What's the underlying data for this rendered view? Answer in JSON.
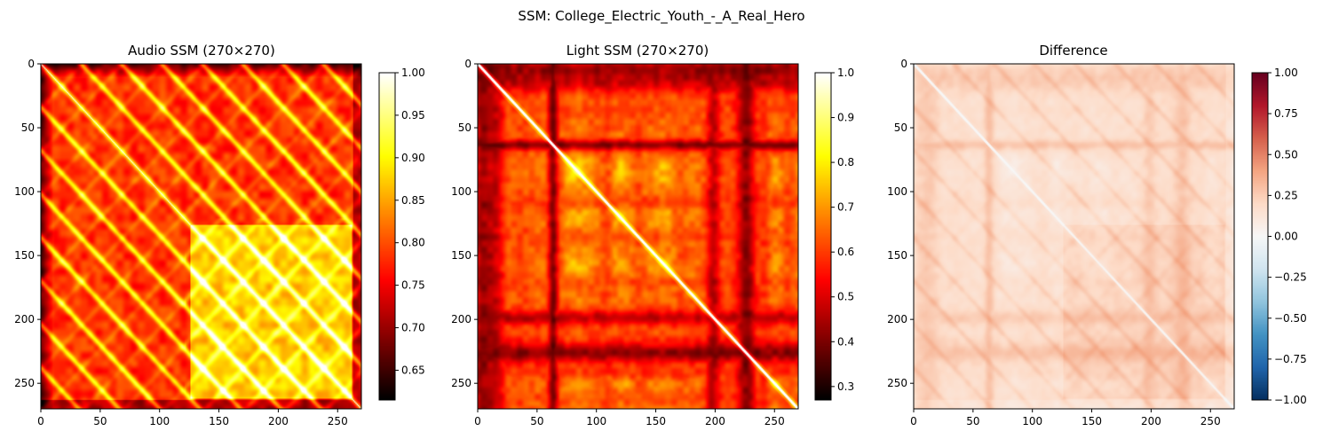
{
  "figure": {
    "suptitle": "SSM: College_Electric_Youth_-_A_Real_Hero"
  },
  "chart_data": [
    {
      "type": "heatmap",
      "title": "Audio SSM (270×270)",
      "colormap": "hot",
      "size": 270,
      "xlim": [
        0,
        270
      ],
      "ylim": [
        270,
        0
      ],
      "xticks": [
        0,
        50,
        100,
        150,
        200,
        250
      ],
      "yticks": [
        0,
        50,
        100,
        150,
        200,
        250
      ],
      "colorbar": {
        "range": [
          0.615,
          1.0
        ],
        "ticks": [
          "0.65",
          "0.70",
          "0.75",
          "0.80",
          "0.85",
          "0.90",
          "0.95",
          "1.00"
        ],
        "tick_values": [
          0.65,
          0.7,
          0.75,
          0.8,
          0.85,
          0.9,
          0.95,
          1.0
        ]
      },
      "structure": {
        "period": 34,
        "low_edge": 10,
        "high_block_start": 125,
        "high_block_end": 262
      }
    },
    {
      "type": "heatmap",
      "title": "Light SSM (270×270)",
      "colormap": "hot",
      "size": 270,
      "xlim": [
        0,
        270
      ],
      "ylim": [
        270,
        0
      ],
      "xticks": [
        0,
        50,
        100,
        150,
        200,
        250
      ],
      "yticks": [
        0,
        50,
        100,
        150,
        200,
        250
      ],
      "colorbar": {
        "range": [
          0.27,
          1.0
        ],
        "ticks": [
          "0.3",
          "0.4",
          "0.5",
          "0.6",
          "0.7",
          "0.8",
          "0.9",
          "1.0"
        ],
        "tick_values": [
          0.3,
          0.4,
          0.5,
          0.6,
          0.7,
          0.8,
          0.9,
          1.0
        ]
      },
      "structure": {
        "dark_bands": [
          5,
          65,
          200,
          225
        ],
        "bright_bands": [
          82,
          155,
          120,
          240
        ]
      }
    },
    {
      "type": "heatmap",
      "title": "Difference",
      "colormap": "RdBu_r",
      "size": 270,
      "xlim": [
        0,
        270
      ],
      "ylim": [
        270,
        0
      ],
      "xticks": [
        0,
        50,
        100,
        150,
        200,
        250
      ],
      "yticks": [
        0,
        50,
        100,
        150,
        200,
        250
      ],
      "colorbar": {
        "range": [
          -1.0,
          1.0
        ],
        "ticks": [
          "1.00",
          "0.75",
          "0.50",
          "0.25",
          "0.00",
          "−0.25",
          "−0.50",
          "−0.75",
          "−1.00"
        ],
        "tick_values": [
          1.0,
          0.75,
          0.5,
          0.25,
          0.0,
          -0.25,
          -0.5,
          -0.75,
          -1.0
        ]
      }
    }
  ]
}
